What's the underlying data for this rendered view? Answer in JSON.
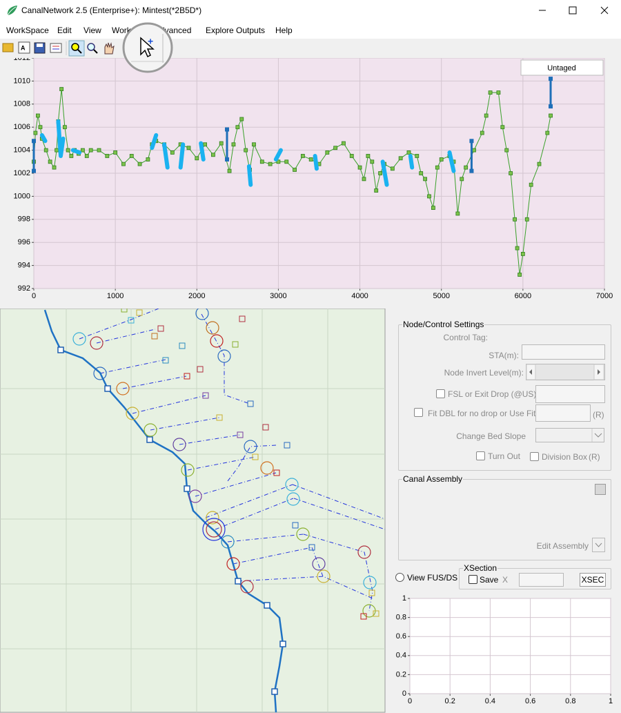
{
  "window": {
    "title": "CanalNetwork 2.5  (Enterprise+): Mintest(*2B5D*)"
  },
  "menu": [
    "WorkSpace",
    "Edit",
    "View",
    "Work",
    "Advanced",
    "Explore Outputs",
    "Help"
  ],
  "profile_chart": {
    "type": "line",
    "button": "Untaged",
    "xlim": [
      0,
      7000
    ],
    "ylim": [
      992,
      1012
    ],
    "xticks": [
      0,
      1000,
      2000,
      3000,
      4000,
      5000,
      6000,
      7000
    ],
    "yticks": [
      992,
      994,
      996,
      998,
      1000,
      1002,
      1004,
      1006,
      1008,
      1010,
      1012
    ],
    "grid": true,
    "series": [
      {
        "color": "#3aa02a",
        "x": [
          0,
          20,
          50,
          80,
          100,
          150,
          200,
          250,
          280,
          300,
          340,
          380,
          420,
          460,
          500,
          550,
          600,
          650,
          700,
          800,
          900,
          1000,
          1100,
          1200,
          1300,
          1400,
          1450,
          1500,
          1600,
          1700,
          1800,
          1900,
          2000,
          2100,
          2200,
          2300,
          2400,
          2450,
          2500,
          2550,
          2600,
          2650,
          2700,
          2800,
          2900,
          3000,
          3100,
          3200,
          3300,
          3400,
          3500,
          3600,
          3700,
          3800,
          3900,
          4000,
          4050,
          4100,
          4150,
          4200,
          4250,
          4300,
          4400,
          4500,
          4600,
          4700,
          4750,
          4800,
          4850,
          4900,
          4950,
          5000,
          5100,
          5150,
          5200,
          5250,
          5300,
          5400,
          5500,
          5550,
          5600,
          5700,
          5750,
          5800,
          5850,
          5900,
          5930,
          5960,
          6000,
          6050,
          6100,
          6200,
          6300,
          6340
        ],
        "values": [
          1003,
          1005.5,
          1007,
          1006,
          1005,
          1004,
          1003,
          1002.5,
          1004,
          1006.5,
          1009.3,
          1006,
          1004,
          1003.5,
          1004,
          1003.7,
          1004,
          1003.5,
          1004,
          1004,
          1003.5,
          1003.8,
          1002.8,
          1003.5,
          1002.8,
          1003.2,
          1004.5,
          1004.8,
          1004.5,
          1003.8,
          1004.5,
          1004.2,
          1003.3,
          1004.5,
          1003.6,
          1004.6,
          1002.2,
          1004.5,
          1006,
          1006.7,
          1004,
          1002.3,
          1004.5,
          1003,
          1002.8,
          1003,
          1003,
          1002.3,
          1003.5,
          1003.2,
          1002.8,
          1003.8,
          1004.2,
          1004.6,
          1003.5,
          1002.5,
          1001.5,
          1003.5,
          1003,
          1000.5,
          1002,
          1002.8,
          1002.4,
          1003.3,
          1003.8,
          1003.5,
          1002,
          1001.5,
          1000,
          999,
          1002.5,
          1003.2,
          1003.5,
          1003,
          998.5,
          1001.5,
          1002.5,
          1004,
          1005.5,
          1007,
          1009,
          1009,
          1006,
          1004,
          1002,
          998,
          995.5,
          993.2,
          995,
          998,
          1001,
          1002.8,
          1005.5,
          1007
        ]
      },
      {
        "color": "#1ab2f0",
        "x": [
          100,
          140,
          null,
          300,
          330,
          360,
          null,
          480,
          560,
          null,
          1450,
          1500,
          null,
          1600,
          1640,
          null,
          1800,
          1830,
          null,
          2050,
          2080,
          null,
          2640,
          2660,
          null,
          2970,
          3030,
          null,
          3450,
          3470,
          null,
          4280,
          4330,
          null,
          4620,
          4640,
          null,
          5100,
          5150
        ],
        "values": [
          1005.3,
          1004.8,
          null,
          1006.5,
          1003.5,
          1005,
          null,
          1004,
          1003.8,
          null,
          1004.2,
          1005.3,
          null,
          1004.5,
          1002.5,
          null,
          1002.5,
          1004.5,
          null,
          1004.6,
          1003.2,
          null,
          1002.6,
          1001,
          null,
          1003.2,
          1004,
          null,
          1003.5,
          1002.4,
          null,
          1003,
          1001,
          null,
          1003.5,
          1002.5,
          null,
          1003.8,
          1002.2
        ]
      }
    ],
    "stems": {
      "color": "#1f6fb8",
      "x": [
        0,
        2370,
        5370,
        6340
      ],
      "low": [
        1002.2,
        1003.2,
        1002.2,
        1007.8
      ],
      "high": [
        1004.8,
        1005.8,
        1004.8,
        1010.2
      ]
    }
  },
  "node_settings": {
    "title": "Node/Control Settings",
    "control_tag": "Control Tag:",
    "sta": "STA(m):",
    "invert": "Node Invert Level(m):",
    "fsl": "FSL or Exit Drop (@US)",
    "fit": "Fit DBL for no drop or Use FitHt:",
    "fit_r": "(R)",
    "bed_slope": "Change Bed Slope",
    "turn_out": "Turn Out",
    "division_box": "Division Box",
    "division_r": "(R)"
  },
  "canal_assembly": {
    "title": "Canal Assembly",
    "edit": "Edit Assembly"
  },
  "view_fus": "View FUS/DS",
  "xsection": {
    "title": "XSection",
    "save": "Save",
    "x_label": "X",
    "button": "XSEC"
  },
  "xsec_chart": {
    "type": "line",
    "xlim": [
      0,
      1
    ],
    "ylim": [
      0,
      1
    ],
    "xticks": [
      0,
      0.2,
      0.4,
      0.6,
      0.8,
      1
    ],
    "yticks": [
      0,
      0.2,
      0.4,
      0.6,
      0.8,
      1
    ],
    "grid": true
  }
}
